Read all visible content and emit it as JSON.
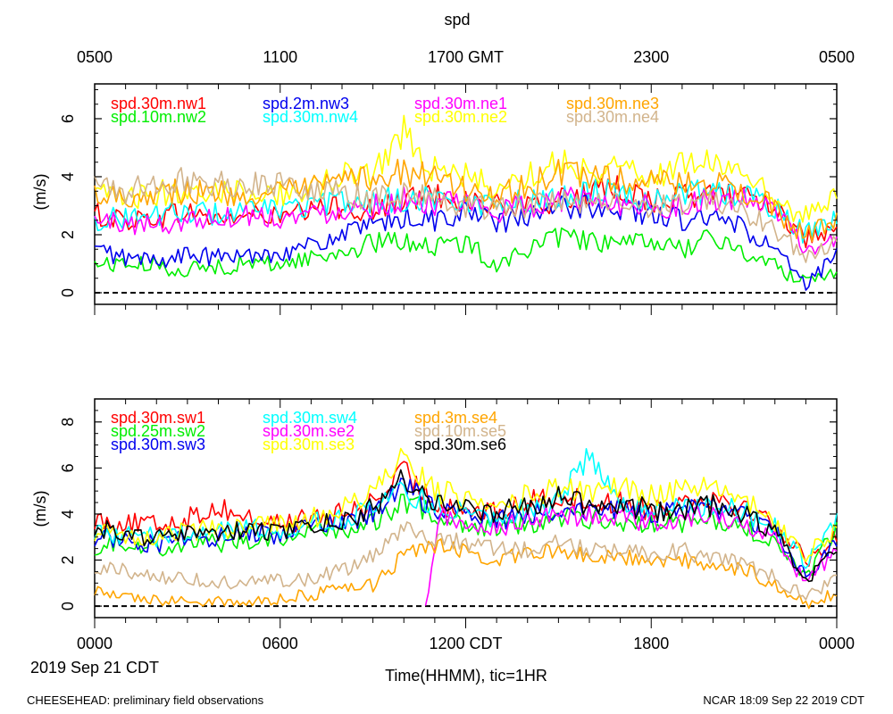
{
  "chart_data": [
    {
      "type": "line",
      "title": "spd",
      "ylabel": "(m/s)",
      "ylim": [
        -0.4,
        7.2
      ],
      "yticks": [
        0,
        2,
        4,
        6
      ],
      "xlim": [
        0,
        24
      ],
      "top_axis_ticks": [
        {
          "x": 0,
          "label": "0500"
        },
        {
          "x": 6,
          "label": "1100"
        },
        {
          "x": 12,
          "label": "1700 GMT"
        },
        {
          "x": 18,
          "label": "2300"
        },
        {
          "x": 24,
          "label": "0500"
        }
      ],
      "x": [
        0,
        1,
        2,
        3,
        4,
        5,
        6,
        7,
        8,
        9,
        10,
        11,
        12,
        13,
        14,
        15,
        16,
        17,
        18,
        19,
        20,
        21,
        22,
        23,
        24
      ],
      "series": [
        {
          "name": "spd.30m.nw1",
          "color": "#ff0000",
          "values": [
            2.7,
            2.5,
            2.6,
            2.8,
            2.5,
            2.7,
            2.6,
            2.8,
            3.0,
            2.8,
            3.2,
            3.4,
            3.2,
            3.0,
            2.9,
            3.2,
            3.4,
            3.6,
            3.2,
            3.3,
            3.4,
            3.5,
            3.0,
            1.8,
            2.0
          ]
        },
        {
          "name": "spd.10m.nw2",
          "color": "#00ee00",
          "values": [
            1.0,
            1.0,
            0.9,
            0.8,
            0.9,
            1.0,
            1.0,
            1.2,
            1.4,
            1.7,
            1.8,
            1.6,
            1.7,
            1.0,
            1.5,
            1.9,
            1.8,
            1.6,
            1.8,
            1.5,
            1.9,
            1.4,
            0.9,
            0.4,
            0.8
          ]
        },
        {
          "name": "spd.2m.nw3",
          "color": "#0000ee",
          "values": [
            1.5,
            1.2,
            1.1,
            1.3,
            1.2,
            1.3,
            1.4,
            1.6,
            2.0,
            2.3,
            2.6,
            2.5,
            2.8,
            2.4,
            2.6,
            2.9,
            3.0,
            2.9,
            2.7,
            2.5,
            2.6,
            2.2,
            1.5,
            0.2,
            1.3
          ]
        },
        {
          "name": "spd.30m.nw4",
          "color": "#00ffff",
          "values": [
            2.5,
            2.6,
            2.7,
            2.8,
            2.7,
            2.8,
            2.9,
            3.0,
            3.1,
            3.2,
            3.2,
            3.3,
            3.0,
            3.2,
            3.1,
            3.3,
            3.5,
            3.5,
            3.2,
            3.4,
            3.5,
            3.4,
            2.9,
            2.0,
            2.5
          ]
        },
        {
          "name": "spd.30m.ne1",
          "color": "#ff00ff",
          "values": [
            2.5,
            2.4,
            2.3,
            2.5,
            2.6,
            2.7,
            2.6,
            2.7,
            2.9,
            3.0,
            3.2,
            3.1,
            3.0,
            2.8,
            3.0,
            3.2,
            3.2,
            3.1,
            3.0,
            3.0,
            3.2,
            3.2,
            2.8,
            1.5,
            1.7
          ]
        },
        {
          "name": "spd.30m.ne2",
          "color": "#ffff00",
          "values": [
            3.4,
            3.2,
            3.4,
            3.6,
            3.5,
            3.5,
            3.4,
            3.6,
            4.0,
            4.2,
            5.6,
            4.2,
            4.0,
            3.6,
            4.0,
            4.6,
            4.2,
            4.4,
            4.0,
            4.4,
            4.6,
            4.0,
            3.2,
            2.6,
            3.4
          ]
        },
        {
          "name": "spd.30m.ne3",
          "color": "#ffa500",
          "values": [
            3.5,
            3.3,
            3.5,
            3.5,
            3.4,
            3.4,
            3.4,
            3.6,
            3.8,
            4.0,
            4.2,
            3.9,
            3.6,
            3.3,
            3.7,
            4.1,
            4.0,
            3.9,
            3.8,
            3.7,
            3.8,
            3.5,
            2.9,
            1.9,
            2.5
          ]
        },
        {
          "name": "spd.30m.ne4",
          "color": "#d2b48c",
          "values": [
            3.8,
            3.5,
            3.7,
            3.9,
            3.8,
            3.7,
            3.8,
            3.6,
            3.4,
            3.3,
            3.5,
            3.2,
            3.0,
            2.9,
            3.0,
            3.2,
            3.0,
            3.1,
            3.0,
            3.0,
            3.1,
            2.8,
            2.2,
            1.3,
            1.9
          ]
        }
      ]
    },
    {
      "type": "line",
      "ylabel": "(m/s)",
      "xlabel": "Time(HHMM), tic=1HR",
      "ylim": [
        -0.5,
        9.0
      ],
      "yticks": [
        0,
        2,
        4,
        6,
        8
      ],
      "xlim": [
        0,
        24
      ],
      "bottom_axis_ticks": [
        {
          "x": 0,
          "label": "0000"
        },
        {
          "x": 6,
          "label": "0600"
        },
        {
          "x": 12,
          "label": "1200 CDT"
        },
        {
          "x": 18,
          "label": "1800"
        },
        {
          "x": 24,
          "label": "0000"
        }
      ],
      "date_label": "2019 Sep 21 CDT",
      "x": [
        0,
        1,
        2,
        3,
        4,
        5,
        6,
        7,
        8,
        9,
        10,
        11,
        12,
        13,
        14,
        15,
        16,
        17,
        18,
        19,
        20,
        21,
        22,
        23,
        24
      ],
      "series": [
        {
          "name": "spd.30m.sw1",
          "color": "#ff0000",
          "values": [
            3.8,
            3.6,
            3.5,
            3.8,
            4.3,
            3.8,
            3.6,
            3.8,
            4.0,
            4.5,
            5.8,
            4.5,
            4.2,
            4.0,
            4.5,
            4.8,
            4.5,
            4.5,
            4.2,
            4.6,
            4.8,
            4.3,
            3.6,
            2.0,
            3.0
          ]
        },
        {
          "name": "spd.25m.sw2",
          "color": "#00ee00",
          "values": [
            2.6,
            2.8,
            2.5,
            2.8,
            2.7,
            2.9,
            3.0,
            3.2,
            3.3,
            3.6,
            4.5,
            4.0,
            3.6,
            3.4,
            3.6,
            3.8,
            3.8,
            3.7,
            3.6,
            3.6,
            3.7,
            3.4,
            2.7,
            1.2,
            3.4
          ]
        },
        {
          "name": "spd.30m.sw3",
          "color": "#0000ee",
          "values": [
            3.0,
            2.9,
            2.7,
            2.9,
            3.0,
            3.2,
            3.1,
            3.4,
            3.6,
            4.0,
            5.2,
            4.3,
            3.9,
            3.7,
            4.0,
            4.2,
            4.2,
            4.1,
            4.0,
            4.1,
            4.2,
            3.9,
            3.2,
            1.3,
            2.8
          ]
        },
        {
          "name": "spd.30m.sw4",
          "color": "#00ffff",
          "values": [
            3.3,
            3.1,
            3.0,
            3.2,
            3.3,
            3.4,
            3.3,
            3.6,
            3.8,
            4.2,
            5.0,
            4.4,
            4.1,
            3.9,
            4.2,
            4.6,
            6.5,
            4.4,
            4.2,
            4.3,
            4.4,
            4.1,
            3.4,
            2.0,
            3.8
          ]
        },
        {
          "name": "spd.30m.se2",
          "color": "#ff00ff",
          "values": [
            null,
            null,
            null,
            null,
            null,
            null,
            null,
            null,
            null,
            null,
            null,
            null,
            null,
            null,
            null,
            null,
            null,
            null,
            null,
            null,
            null,
            null,
            null,
            null,
            null
          ]
        },
        {
          "name": "spd.30m.se3",
          "color": "#ffff00",
          "values": [
            3.2,
            3.0,
            3.1,
            3.3,
            3.3,
            3.5,
            3.5,
            3.8,
            4.2,
            4.8,
            6.5,
            5.0,
            4.7,
            4.4,
            4.8,
            5.2,
            5.0,
            5.3,
            4.8,
            5.0,
            5.4,
            4.6,
            3.6,
            2.2,
            3.2
          ]
        },
        {
          "name": "spd.3m.se4",
          "color": "#ffa500",
          "values": [
            0.7,
            0.3,
            0.3,
            0.2,
            0.2,
            0.2,
            0.3,
            0.5,
            0.7,
            0.9,
            2.2,
            2.6,
            2.4,
            2.0,
            2.2,
            2.5,
            2.2,
            2.1,
            2.0,
            2.0,
            1.8,
            1.6,
            1.0,
            0.1,
            0.6
          ]
        },
        {
          "name": "spd.10m.se5",
          "color": "#d2b48c",
          "values": [
            1.7,
            1.5,
            1.3,
            1.2,
            1.1,
            1.0,
            1.1,
            1.2,
            1.6,
            2.1,
            3.3,
            2.9,
            2.7,
            2.4,
            2.5,
            2.8,
            2.5,
            2.4,
            2.3,
            2.4,
            2.1,
            1.8,
            1.3,
            0.4,
            1.2
          ]
        },
        {
          "name": "spd.30m.se6",
          "color": "#000000",
          "values": [
            3.4,
            3.2,
            2.9,
            3.1,
            3.2,
            3.3,
            3.2,
            3.5,
            3.8,
            4.2,
            5.6,
            4.6,
            4.3,
            4.0,
            4.4,
            4.8,
            4.4,
            4.4,
            4.2,
            4.2,
            4.4,
            4.0,
            3.2,
            1.0,
            2.6
          ]
        }
      ]
    }
  ],
  "footer": {
    "left": "CHEESEHEAD: preliminary field observations",
    "right": "NCAR 18:09 Sep 22 2019 CDT"
  }
}
